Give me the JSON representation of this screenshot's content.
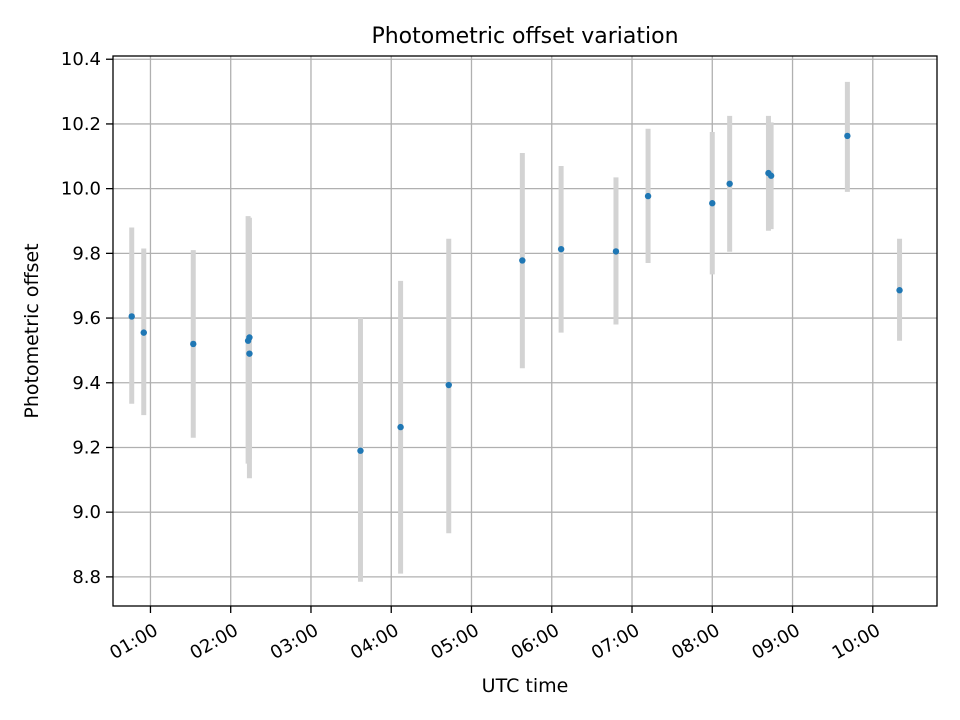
{
  "chart_data": {
    "type": "scatter",
    "title": "Photometric offset variation",
    "xlabel": "UTC time",
    "ylabel": "Photometric offset",
    "x_ticks": [
      "01:00",
      "02:00",
      "03:00",
      "04:00",
      "05:00",
      "06:00",
      "07:00",
      "08:00",
      "09:00",
      "10:00"
    ],
    "y_ticks": [
      "8.8",
      "9.0",
      "9.2",
      "9.4",
      "9.6",
      "9.8",
      "10.0",
      "10.2",
      "10.4"
    ],
    "xlim": [
      "00:32",
      "10:48"
    ],
    "ylim": [
      8.71,
      10.41
    ],
    "grid": true,
    "colors": {
      "point": "#1f77b4",
      "errorbar": "#d3d3d3",
      "grid": "#b0b0b0"
    },
    "points": [
      {
        "x": "00:46",
        "y": 9.605,
        "err_low": 9.335,
        "err_high": 9.88
      },
      {
        "x": "00:55",
        "y": 9.555,
        "err_low": 9.3,
        "err_high": 9.815
      },
      {
        "x": "01:32",
        "y": 9.52,
        "err_low": 9.23,
        "err_high": 9.81
      },
      {
        "x": "02:13",
        "y": 9.53,
        "err_low": 9.15,
        "err_high": 9.915
      },
      {
        "x": "02:14",
        "y": 9.54,
        "err_low": 9.165,
        "err_high": 9.91
      },
      {
        "x": "02:14",
        "y": 9.49,
        "err_low": 9.105,
        "err_high": 9.875
      },
      {
        "x": "03:37",
        "y": 9.19,
        "err_low": 8.785,
        "err_high": 9.6
      },
      {
        "x": "04:07",
        "y": 9.263,
        "err_low": 8.81,
        "err_high": 9.715
      },
      {
        "x": "04:43",
        "y": 9.393,
        "err_low": 8.935,
        "err_high": 9.845
      },
      {
        "x": "05:38",
        "y": 9.778,
        "err_low": 9.445,
        "err_high": 10.11
      },
      {
        "x": "06:07",
        "y": 9.813,
        "err_low": 9.555,
        "err_high": 10.07
      },
      {
        "x": "06:48",
        "y": 9.806,
        "err_low": 9.58,
        "err_high": 10.035
      },
      {
        "x": "07:12",
        "y": 9.977,
        "err_low": 9.77,
        "err_high": 10.185
      },
      {
        "x": "08:00",
        "y": 9.955,
        "err_low": 9.735,
        "err_high": 10.175
      },
      {
        "x": "08:13",
        "y": 10.015,
        "err_low": 9.805,
        "err_high": 10.225
      },
      {
        "x": "08:42",
        "y": 10.048,
        "err_low": 9.87,
        "err_high": 10.225
      },
      {
        "x": "08:44",
        "y": 10.04,
        "err_low": 9.875,
        "err_high": 10.205
      },
      {
        "x": "09:41",
        "y": 10.163,
        "err_low": 9.99,
        "err_high": 10.33
      },
      {
        "x": "10:20",
        "y": 9.686,
        "err_low": 9.53,
        "err_high": 9.845
      }
    ]
  }
}
